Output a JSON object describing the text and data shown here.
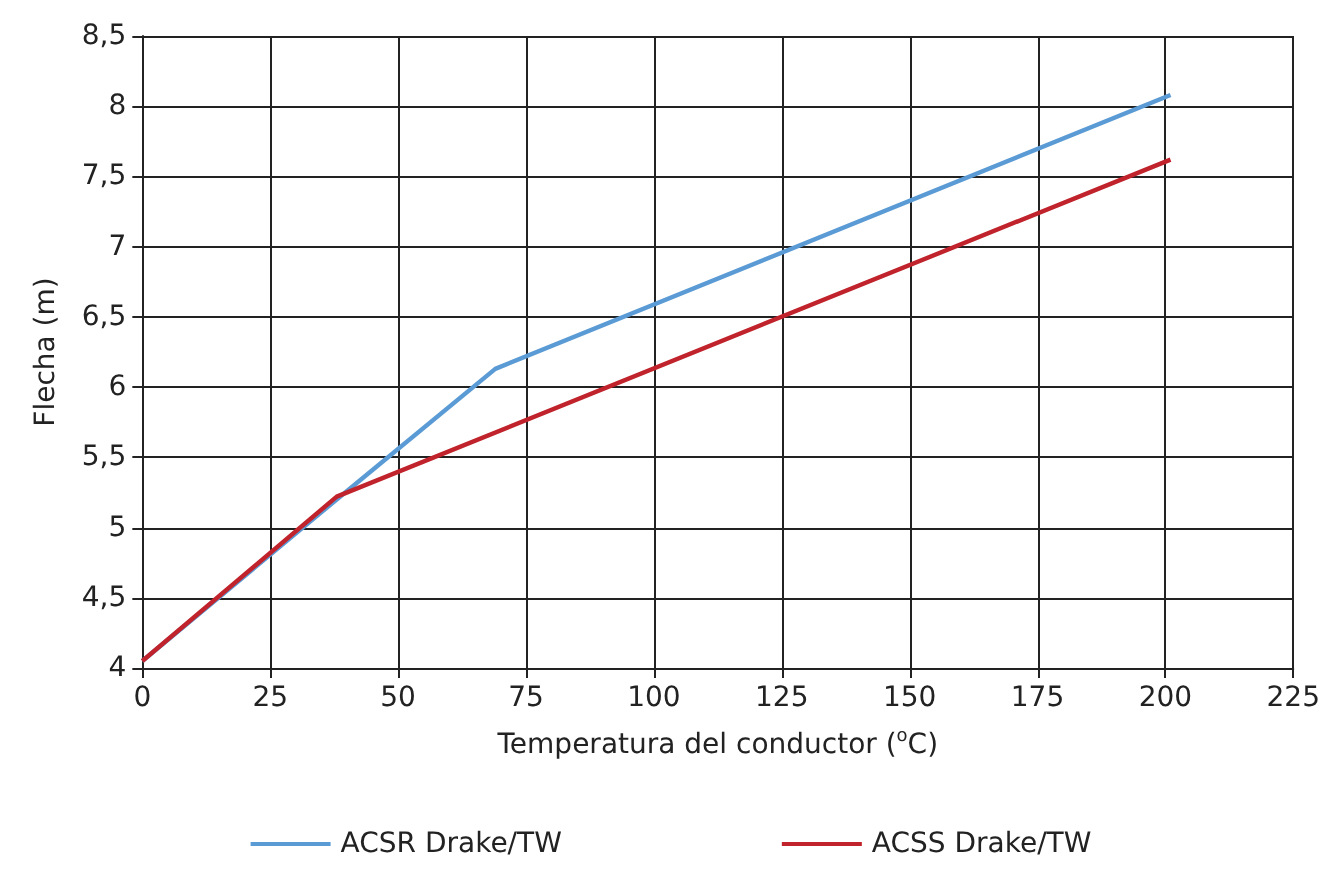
{
  "chart_data": {
    "type": "line",
    "xlabel": "Temperatura del conductor ($^{o}$C)",
    "ylabel": "Flecha (m)",
    "series": [
      {
        "name": "ACSR Drake/TW",
        "color": "#5b9bd5",
        "x": [
          0,
          38,
          69,
          201
        ],
        "values": [
          4.05,
          5.2,
          6.13,
          8.08
        ]
      },
      {
        "name": "ACSS Drake/TW",
        "color": "#c0232b",
        "x": [
          0,
          38,
          201
        ],
        "values": [
          4.05,
          5.22,
          7.62
        ]
      }
    ],
    "xlim": [
      0,
      225
    ],
    "xticks": [
      0,
      25,
      50,
      75,
      100,
      125,
      150,
      175,
      200,
      225
    ],
    "ylim": [
      4,
      8.5
    ],
    "yticks": [
      4,
      {
        "value": 4.5,
        "label": "4,5"
      },
      5,
      {
        "value": 5.5,
        "label": "5,5"
      },
      6,
      {
        "value": 6.5,
        "label": "6,5"
      },
      7,
      {
        "value": 7.5,
        "label": "7,5"
      },
      8,
      {
        "value": 8.5,
        "label": "8,5"
      }
    ],
    "grid": true,
    "legend": "bottom",
    "marker": "none",
    "line_style": "solid"
  }
}
